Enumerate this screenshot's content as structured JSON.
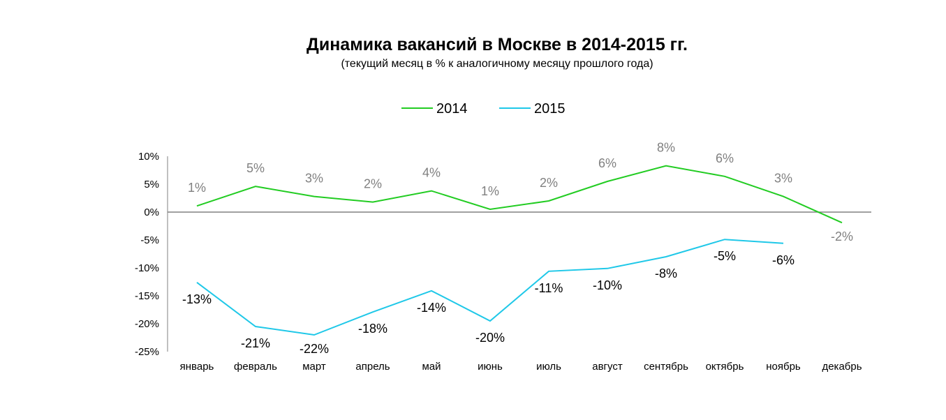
{
  "chart_data": {
    "type": "line",
    "title": "Динамика вакансий в Москве в 2014-2015 гг.",
    "subtitle": "(текущий месяц в % к аналогичному месяцу прошлого года)",
    "xlabel": "",
    "ylabel": "",
    "categories": [
      "январь",
      "февраль",
      "март",
      "апрель",
      "май",
      "июнь",
      "июль",
      "август",
      "сентябрь",
      "октябрь",
      "ноябрь",
      "декабрь"
    ],
    "ylim": [
      -25,
      10
    ],
    "yticks": [
      10,
      5,
      0,
      -5,
      -10,
      -15,
      -20,
      -25
    ],
    "ytick_labels": [
      "10%",
      "5%",
      "0%",
      "-5%",
      "-10%",
      "-15%",
      "-20%",
      "-25%"
    ],
    "grid": false,
    "legend_position": "top",
    "series": [
      {
        "name": "2014",
        "color": "#22cc22",
        "label_color": "#808080",
        "values": [
          1.1,
          4.6,
          2.8,
          1.8,
          3.8,
          0.5,
          2.0,
          5.5,
          8.3,
          6.4,
          2.8,
          -1.9
        ],
        "labels": [
          "1%",
          "5%",
          "3%",
          "2%",
          "4%",
          "1%",
          "2%",
          "6%",
          "8%",
          "6%",
          "3%",
          "-2%"
        ]
      },
      {
        "name": "2015",
        "color": "#1fc8e8",
        "label_color": "#000000",
        "values": [
          -12.6,
          -20.5,
          -22.0,
          -17.9,
          -14.1,
          -19.5,
          -10.6,
          -10.1,
          -8.0,
          -4.9,
          -5.6,
          null
        ],
        "labels": [
          "-13%",
          "-21%",
          "-22%",
          "-18%",
          "-14%",
          "-20%",
          "-11%",
          "-10%",
          "-8%",
          "-5%",
          "-6%",
          null
        ]
      }
    ]
  }
}
